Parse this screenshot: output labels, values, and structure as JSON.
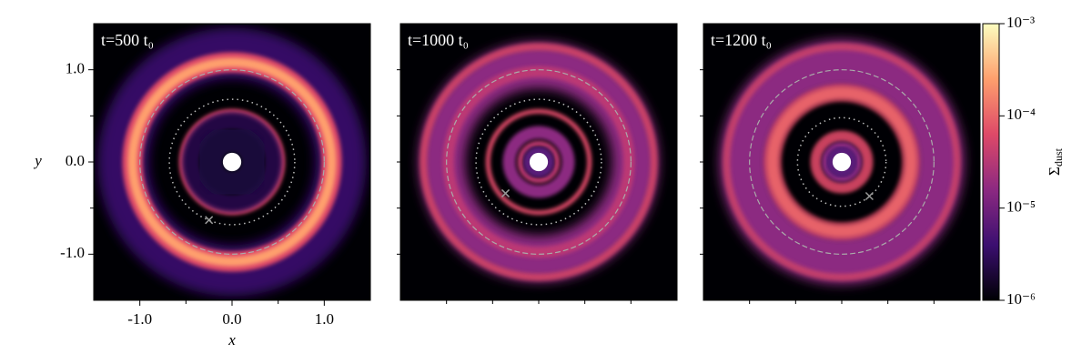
{
  "chart_data": [
    {
      "type": "heatmap",
      "title": "t=500 t₀",
      "xlabel": "x",
      "ylabel": "y",
      "xlim": [
        -1.5,
        1.5
      ],
      "ylim": [
        -1.5,
        1.5
      ],
      "xticks": [
        {
          "value": -1,
          "label": "-1.0"
        },
        {
          "value": 0,
          "label": "0.0"
        },
        {
          "value": 1,
          "label": "1.0"
        }
      ],
      "yticks": [
        {
          "value": 1,
          "label": "1.0"
        },
        {
          "value": 0,
          "label": "0.0"
        },
        {
          "value": -1,
          "label": "-1.0"
        }
      ],
      "xminorticks": [
        -0.5,
        0.5
      ],
      "yminorticks": [
        -0.5,
        0.5
      ],
      "dashed_circle_radius": 1.0,
      "dotted_circle_radius": 0.68,
      "planet": {
        "x": -0.25,
        "y": -0.63
      }
    },
    {
      "type": "heatmap",
      "title": "t=1000 t₀",
      "xlim": [
        -1.5,
        1.5
      ],
      "ylim": [
        -1.5,
        1.5
      ],
      "xminorticks": [
        -1,
        -0.5,
        0,
        0.5,
        1
      ],
      "yminorticks": [
        -1,
        -0.5,
        0,
        0.5,
        1
      ],
      "dashed_circle_radius": 1.0,
      "dotted_circle_radius": 0.68,
      "planet": {
        "x": -0.36,
        "y": -0.34
      }
    },
    {
      "type": "heatmap",
      "title": "t=1200 t₀",
      "xlim": [
        -1.5,
        1.5
      ],
      "ylim": [
        -1.5,
        1.5
      ],
      "xminorticks": [
        -1,
        -0.5,
        0,
        0.5,
        1
      ],
      "yminorticks": [
        -1,
        -0.5,
        0,
        0.5,
        1
      ],
      "dashed_circle_radius": 1.0,
      "dotted_circle_radius": 0.48,
      "planet": {
        "x": 0.3,
        "y": -0.37
      },
      "colorbar": {
        "label": {
          "symbol": "Σ",
          "subscript": "dust"
        },
        "log": true,
        "clim": [
          1e-06,
          0.001
        ],
        "colors": [
          "#000004",
          "#3b0f70",
          "#8c2981",
          "#de4968",
          "#fe9f6d",
          "#fcfdbf"
        ],
        "ticks": [
          {
            "value": 0.001,
            "label": "10⁻³"
          },
          {
            "value": 0.0001,
            "label": "10⁻⁴"
          },
          {
            "value": 1e-05,
            "label": "10⁻⁵"
          },
          {
            "value": 1e-06,
            "label": "10⁻⁶"
          }
        ]
      }
    }
  ]
}
